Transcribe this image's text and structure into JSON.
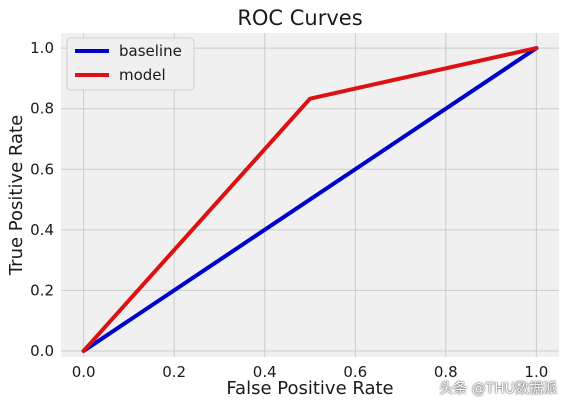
{
  "chart_data": {
    "type": "line",
    "title": "ROC Curves",
    "xlabel": "False Positive Rate",
    "ylabel": "True Positive Rate",
    "xlim": [
      -0.05,
      1.05
    ],
    "ylim": [
      -0.02,
      1.05
    ],
    "xticks": [
      0.0,
      0.2,
      0.4,
      0.6,
      0.8,
      1.0
    ],
    "xtick_labels": [
      "0.0",
      "0.2",
      "0.4",
      "0.6",
      "0.8",
      "1.0"
    ],
    "yticks": [
      0.0,
      0.2,
      0.4,
      0.6,
      0.8,
      1.0
    ],
    "ytick_labels": [
      "0.0",
      "0.2",
      "0.4",
      "0.6",
      "0.8",
      "1.0"
    ],
    "grid": true,
    "legend_position": "top-left",
    "series": [
      {
        "name": "baseline",
        "color": "#0000cc",
        "x": [
          0.0,
          1.0
        ],
        "y": [
          0.0,
          1.0
        ]
      },
      {
        "name": "model",
        "color": "#dd1111",
        "x": [
          0.0,
          0.5,
          1.0
        ],
        "y": [
          0.0,
          0.833,
          1.0
        ]
      }
    ]
  },
  "watermark": "头条 @THU数据派",
  "colors": {
    "plot_background": "#f0f0f0",
    "grid": "#cbcbcb"
  }
}
